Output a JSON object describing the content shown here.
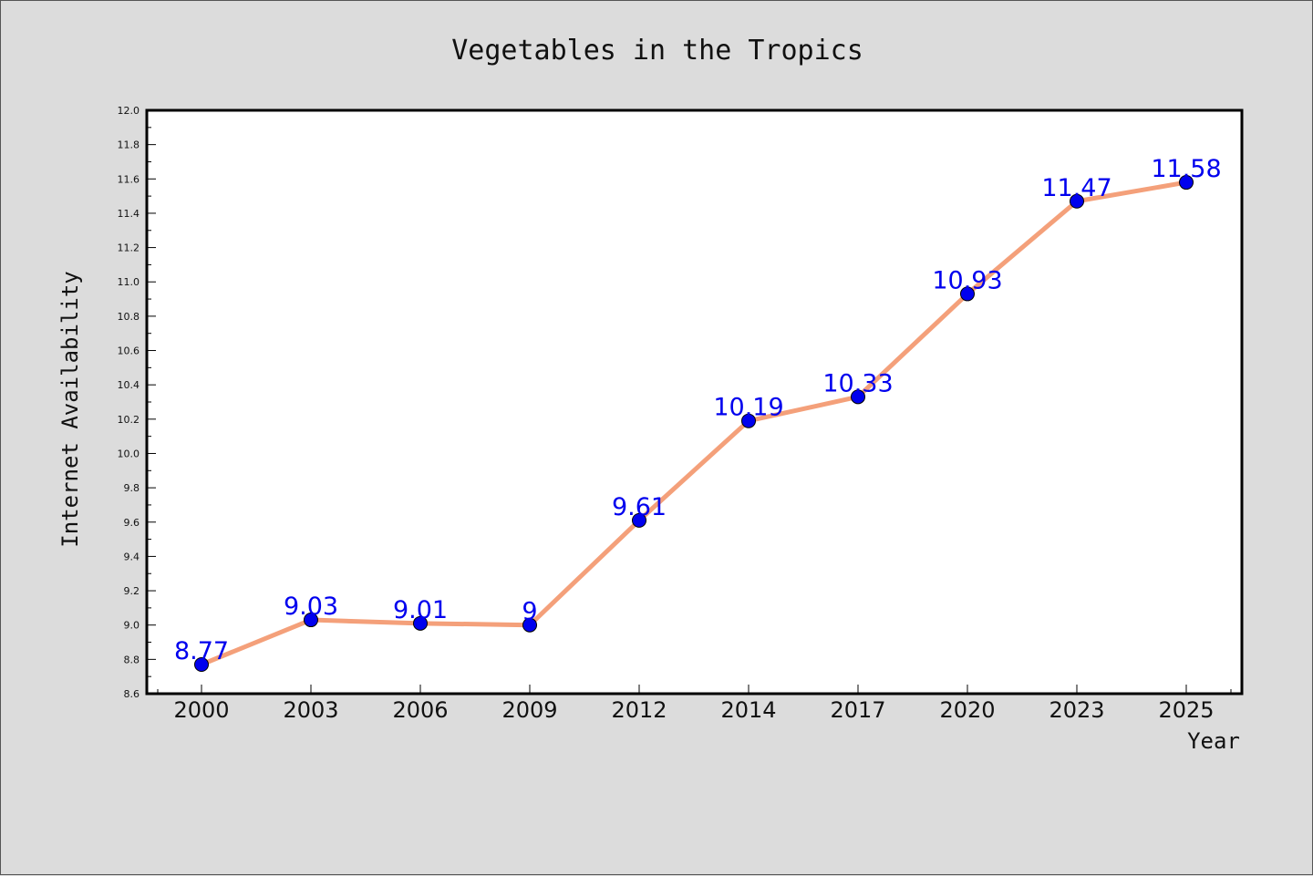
{
  "chart_data": {
    "type": "line",
    "title": "Vegetables in the Tropics",
    "xlabel": "Year",
    "ylabel": "Internet Availability",
    "categories": [
      "2000",
      "2003",
      "2006",
      "2009",
      "2012",
      "2014",
      "2017",
      "2020",
      "2023",
      "2025"
    ],
    "series": [
      {
        "values": [
          8.77,
          9.03,
          9.01,
          9,
          9.61,
          10.19,
          10.33,
          10.93,
          11.47,
          11.58
        ],
        "labels": [
          "8.77",
          "9.03",
          "9.01",
          "9",
          "9.61",
          "10.19",
          "10.33",
          "10.93",
          "11.47",
          "11.58"
        ],
        "line_color": "#f4a07a",
        "marker_color": "#0000ee",
        "label_color": "#0000ee"
      }
    ],
    "ylim": [
      8.6,
      12.0
    ],
    "y_ticks": [
      "8.6",
      "8.8",
      "9.0",
      "9.2",
      "9.4",
      "9.6",
      "9.8",
      "10.0",
      "10.2",
      "10.4",
      "10.6",
      "10.8",
      "11.0",
      "11.2",
      "11.4",
      "11.6",
      "11.8",
      "12.0"
    ],
    "grid": false,
    "legend": "none",
    "colors": {
      "background": "#dcdcdc",
      "plot_background": "#ffffff",
      "axes": "#000000"
    }
  }
}
